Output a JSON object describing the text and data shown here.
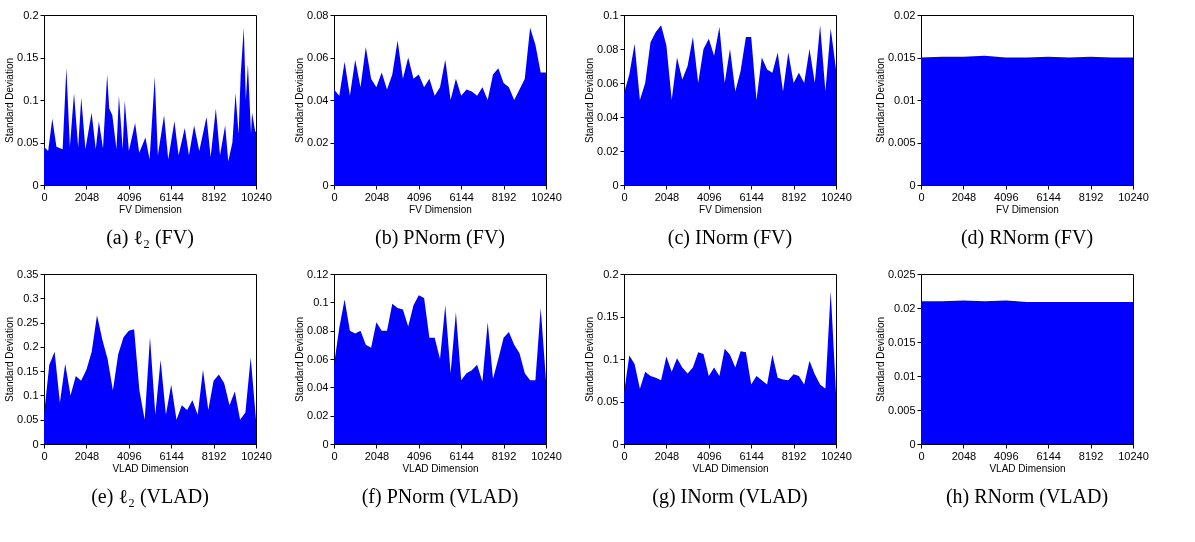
{
  "chart_data": [
    {
      "type": "area",
      "title": "(a) ℓ₂ (FV)",
      "xlabel": "FV Dimension",
      "ylabel": "Standard Deviation",
      "color": "#0000ff",
      "xlim": [
        0,
        10240
      ],
      "xticks": [
        0,
        2048,
        4096,
        6144,
        8192,
        10240
      ],
      "ylim": [
        0,
        0.2
      ],
      "yticks": [
        0,
        0.05,
        0.1,
        0.15,
        0.2
      ],
      "x": [
        0,
        200,
        400,
        600,
        900,
        1080,
        1250,
        1450,
        1650,
        1800,
        2000,
        2300,
        2500,
        2650,
        2850,
        3050,
        3150,
        3300,
        3500,
        3620,
        3800,
        3900,
        4100,
        4400,
        4600,
        4900,
        5100,
        5350,
        5500,
        5800,
        6000,
        6300,
        6500,
        6800,
        7000,
        7250,
        7500,
        7850,
        8050,
        8300,
        8500,
        8750,
        8900,
        9100,
        9250,
        9400,
        9500,
        9650,
        9750,
        9850,
        10000,
        10050,
        10200,
        10240
      ],
      "values": [
        0.045,
        0.04,
        0.078,
        0.045,
        0.042,
        0.138,
        0.045,
        0.108,
        0.044,
        0.103,
        0.042,
        0.085,
        0.042,
        0.075,
        0.043,
        0.13,
        0.09,
        0.082,
        0.042,
        0.105,
        0.042,
        0.099,
        0.04,
        0.073,
        0.038,
        0.056,
        0.03,
        0.127,
        0.035,
        0.082,
        0.03,
        0.075,
        0.035,
        0.067,
        0.035,
        0.07,
        0.04,
        0.08,
        0.033,
        0.09,
        0.035,
        0.07,
        0.028,
        0.05,
        0.108,
        0.06,
        0.13,
        0.185,
        0.1,
        0.142,
        0.06,
        0.085,
        0.063,
        0.063
      ]
    },
    {
      "type": "area",
      "title": "(b) PNorm (FV)",
      "xlabel": "FV Dimension",
      "ylabel": "Standard Deviation",
      "color": "#0000ff",
      "xlim": [
        0,
        10240
      ],
      "xticks": [
        0,
        2048,
        4096,
        6144,
        8192,
        10240
      ],
      "ylim": [
        0,
        0.08
      ],
      "yticks": [
        0,
        0.02,
        0.04,
        0.06,
        0.08
      ],
      "x": [
        0,
        256,
        512,
        768,
        1024,
        1280,
        1536,
        1792,
        2048,
        2304,
        2560,
        2816,
        3072,
        3328,
        3584,
        3840,
        4096,
        4352,
        4608,
        4864,
        5120,
        5376,
        5632,
        5888,
        6144,
        6400,
        6656,
        6912,
        7168,
        7424,
        7680,
        7936,
        8192,
        8448,
        8704,
        8960,
        9216,
        9472,
        9728,
        9984,
        10240
      ],
      "values": [
        0.045,
        0.042,
        0.058,
        0.042,
        0.059,
        0.046,
        0.065,
        0.05,
        0.046,
        0.053,
        0.045,
        0.052,
        0.068,
        0.05,
        0.06,
        0.05,
        0.052,
        0.046,
        0.05,
        0.042,
        0.046,
        0.059,
        0.04,
        0.05,
        0.042,
        0.045,
        0.044,
        0.042,
        0.046,
        0.04,
        0.052,
        0.055,
        0.048,
        0.046,
        0.04,
        0.045,
        0.05,
        0.074,
        0.066,
        0.053,
        0.053
      ]
    },
    {
      "type": "area",
      "title": "(c) INorm (FV)",
      "xlabel": "FV Dimension",
      "ylabel": "Standard Deviation",
      "color": "#0000ff",
      "xlim": [
        0,
        10240
      ],
      "xticks": [
        0,
        2048,
        4096,
        6144,
        8192,
        10240
      ],
      "ylim": [
        0,
        0.1
      ],
      "yticks": [
        0,
        0.02,
        0.04,
        0.06,
        0.08,
        0.1
      ],
      "x": [
        0,
        256,
        512,
        768,
        1024,
        1280,
        1536,
        1792,
        2048,
        2304,
        2560,
        2816,
        3072,
        3328,
        3584,
        3840,
        4096,
        4352,
        4608,
        4864,
        5120,
        5376,
        5632,
        5888,
        6144,
        6400,
        6656,
        6912,
        7168,
        7424,
        7680,
        7936,
        8192,
        8448,
        8704,
        8960,
        9216,
        9472,
        9728,
        9984,
        10240
      ],
      "values": [
        0.054,
        0.065,
        0.083,
        0.05,
        0.06,
        0.084,
        0.09,
        0.094,
        0.082,
        0.05,
        0.075,
        0.062,
        0.07,
        0.087,
        0.06,
        0.08,
        0.086,
        0.076,
        0.093,
        0.06,
        0.08,
        0.055,
        0.067,
        0.087,
        0.087,
        0.05,
        0.075,
        0.068,
        0.066,
        0.078,
        0.055,
        0.078,
        0.06,
        0.066,
        0.06,
        0.08,
        0.06,
        0.094,
        0.055,
        0.092,
        0.068
      ]
    },
    {
      "type": "area",
      "title": "(d) RNorm (FV)",
      "xlabel": "FV Dimension",
      "ylabel": "Standard Deviation",
      "color": "#0000ff",
      "xlim": [
        0,
        10240
      ],
      "xticks": [
        0,
        2048,
        4096,
        6144,
        8192,
        10240
      ],
      "ylim": [
        0,
        0.02
      ],
      "yticks": [
        0,
        0.005,
        0.01,
        0.015,
        0.02
      ],
      "x": [
        0,
        1024,
        2048,
        3072,
        4096,
        5120,
        6144,
        7168,
        8192,
        9216,
        10240
      ],
      "values": [
        0.015,
        0.0151,
        0.0151,
        0.0152,
        0.015,
        0.015,
        0.0151,
        0.015,
        0.0151,
        0.015,
        0.015
      ]
    },
    {
      "type": "area",
      "title": "(e) ℓ₂ (VLAD)",
      "xlabel": "VLAD Dimension",
      "ylabel": "Standard Deviation",
      "color": "#0000ff",
      "xlim": [
        0,
        10240
      ],
      "xticks": [
        0,
        2048,
        4096,
        6144,
        8192,
        10240
      ],
      "ylim": [
        0,
        0.35
      ],
      "yticks": [
        0,
        0.05,
        0.1,
        0.15,
        0.2,
        0.25,
        0.3,
        0.35
      ],
      "x": [
        0,
        256,
        512,
        768,
        1024,
        1280,
        1536,
        1792,
        2048,
        2304,
        2560,
        2816,
        3072,
        3328,
        3584,
        3840,
        4096,
        4352,
        4608,
        4864,
        5120,
        5376,
        5632,
        5888,
        6144,
        6400,
        6656,
        6912,
        7168,
        7424,
        7680,
        7936,
        8192,
        8448,
        8704,
        8960,
        9216,
        9472,
        9728,
        9984,
        10240
      ],
      "values": [
        0.06,
        0.163,
        0.19,
        0.085,
        0.165,
        0.1,
        0.14,
        0.13,
        0.153,
        0.19,
        0.265,
        0.215,
        0.175,
        0.11,
        0.185,
        0.22,
        0.233,
        0.236,
        0.11,
        0.05,
        0.22,
        0.06,
        0.173,
        0.06,
        0.122,
        0.05,
        0.08,
        0.07,
        0.09,
        0.06,
        0.153,
        0.07,
        0.13,
        0.143,
        0.125,
        0.08,
        0.108,
        0.05,
        0.065,
        0.178,
        0.05
      ]
    },
    {
      "type": "area",
      "title": "(f) PNorm (VLAD)",
      "xlabel": "VLAD Dimension",
      "ylabel": "Standard Deviation",
      "color": "#0000ff",
      "xlim": [
        0,
        10240
      ],
      "xticks": [
        0,
        2048,
        4096,
        6144,
        8192,
        10240
      ],
      "ylim": [
        0,
        0.12
      ],
      "yticks": [
        0,
        0.02,
        0.04,
        0.06,
        0.08,
        0.1,
        0.12
      ],
      "x": [
        0,
        256,
        512,
        768,
        1024,
        1280,
        1536,
        1792,
        2048,
        2304,
        2560,
        2816,
        3072,
        3328,
        3584,
        3840,
        4096,
        4352,
        4608,
        4864,
        5120,
        5376,
        5632,
        5888,
        6144,
        6400,
        6656,
        6912,
        7168,
        7424,
        7680,
        7936,
        8192,
        8448,
        8704,
        8960,
        9216,
        9472,
        9728,
        9984,
        10240
      ],
      "values": [
        0.056,
        0.082,
        0.102,
        0.08,
        0.078,
        0.08,
        0.07,
        0.068,
        0.086,
        0.08,
        0.08,
        0.099,
        0.096,
        0.095,
        0.083,
        0.098,
        0.105,
        0.103,
        0.075,
        0.075,
        0.06,
        0.098,
        0.05,
        0.093,
        0.045,
        0.05,
        0.052,
        0.056,
        0.044,
        0.086,
        0.046,
        0.06,
        0.075,
        0.079,
        0.07,
        0.064,
        0.05,
        0.045,
        0.045,
        0.096,
        0.045
      ]
    },
    {
      "type": "area",
      "title": "(g) INorm (VLAD)",
      "xlabel": "VLAD Dimension",
      "ylabel": "Standard Deviation",
      "color": "#0000ff",
      "xlim": [
        0,
        10240
      ],
      "xticks": [
        0,
        2048,
        4096,
        6144,
        8192,
        10240
      ],
      "ylim": [
        0,
        0.2
      ],
      "yticks": [
        0,
        0.05,
        0.1,
        0.15,
        0.2
      ],
      "x": [
        0,
        256,
        512,
        768,
        1024,
        1280,
        1536,
        1792,
        2048,
        2304,
        2560,
        2816,
        3072,
        3328,
        3584,
        3840,
        4096,
        4352,
        4608,
        4864,
        5120,
        5376,
        5632,
        5888,
        6144,
        6400,
        6656,
        6912,
        7168,
        7424,
        7680,
        7936,
        8192,
        8448,
        8704,
        8960,
        9216,
        9472,
        9728,
        9984,
        10240
      ],
      "values": [
        0.06,
        0.104,
        0.094,
        0.065,
        0.085,
        0.08,
        0.078,
        0.075,
        0.103,
        0.085,
        0.101,
        0.09,
        0.083,
        0.09,
        0.108,
        0.106,
        0.08,
        0.09,
        0.08,
        0.112,
        0.105,
        0.09,
        0.109,
        0.108,
        0.07,
        0.08,
        0.075,
        0.07,
        0.105,
        0.078,
        0.076,
        0.075,
        0.082,
        0.08,
        0.07,
        0.098,
        0.082,
        0.07,
        0.065,
        0.18,
        0.06
      ]
    },
    {
      "type": "area",
      "title": "(h) RNorm (VLAD)",
      "xlabel": "VLAD Dimension",
      "ylabel": "Standard Deviation",
      "color": "#0000ff",
      "xlim": [
        0,
        10240
      ],
      "xticks": [
        0,
        2048,
        4096,
        6144,
        8192,
        10240
      ],
      "ylim": [
        0,
        0.025
      ],
      "yticks": [
        0,
        0.005,
        0.01,
        0.015,
        0.02,
        0.025
      ],
      "x": [
        0,
        1024,
        2048,
        3072,
        4096,
        5120,
        6144,
        7168,
        8192,
        9216,
        10240
      ],
      "values": [
        0.021,
        0.021,
        0.0211,
        0.021,
        0.0211,
        0.0209,
        0.0209,
        0.0209,
        0.0209,
        0.0209,
        0.0209
      ]
    }
  ]
}
